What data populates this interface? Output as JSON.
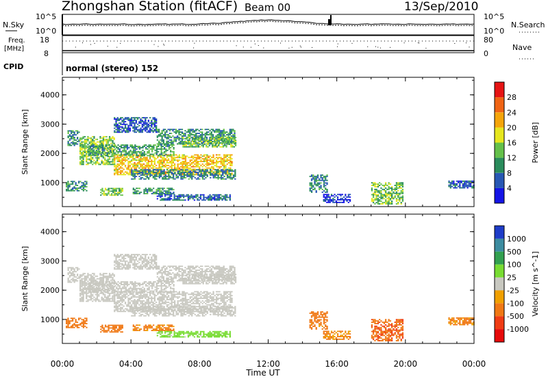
{
  "header": {
    "title": "Zhongshan Station (fitACF)",
    "beam": "Beam 00",
    "date": "13/Sep/2010"
  },
  "status_panels": {
    "nsky": {
      "label": "N.Sky",
      "ticks": [
        "10^5",
        "10^0"
      ]
    },
    "nsearch": {
      "label": "N.Search",
      "ticks": [
        "10^5",
        "10^0"
      ]
    },
    "freq": {
      "label_line1": "Freq.",
      "label_line2": "[MHz]",
      "ticks": [
        "18",
        "8"
      ]
    },
    "nave": {
      "label": "Nave",
      "ticks": [
        "80",
        "0"
      ]
    },
    "cpid": {
      "label": "CPID",
      "text": "normal (stereo) 152"
    }
  },
  "colors": {
    "power_scale": [
      "#1414e6",
      "#2858b4",
      "#2a8c5c",
      "#64c04a",
      "#e6e61e",
      "#f5a50a",
      "#f06414",
      "#e61414"
    ],
    "velocity_scale": [
      "#1e3cc8",
      "#3c8ca0",
      "#32a050",
      "#78dc32",
      "#c8c8c0",
      "#f0a000",
      "#f07814",
      "#f03c14",
      "#e60a0a"
    ],
    "velocity_bg": "#c8c8c0"
  },
  "chart_data": [
    {
      "type": "heatmap",
      "title": "",
      "xlabel": "Time UT",
      "ylabel": "Slant Range [km]",
      "x_tick_labels": [
        "00:00",
        "04:00",
        "08:00",
        "12:00",
        "16:00",
        "20:00",
        "00:00"
      ],
      "xlim": [
        0,
        24
      ],
      "ylim": [
        180,
        4600
      ],
      "y_tick_labels": [
        "1000",
        "2000",
        "3000",
        "4000"
      ],
      "colorbar": {
        "label": "Power [dB]",
        "ticks": [
          "28",
          "24",
          "20",
          "16",
          "12",
          "8",
          "4"
        ],
        "range": [
          0,
          32
        ]
      },
      "regions": [
        {
          "t": [
            0.3,
            1.0
          ],
          "r": [
            2250,
            2750
          ],
          "v": 9
        },
        {
          "t": [
            1.0,
            3.0
          ],
          "r": [
            1600,
            2550
          ],
          "v": 15
        },
        {
          "t": [
            3.0,
            9.9
          ],
          "r": [
            1250,
            1950
          ],
          "v": 20
        },
        {
          "t": [
            1.5,
            6.5
          ],
          "r": [
            1900,
            2300
          ],
          "v": 11
        },
        {
          "t": [
            4.0,
            10.1
          ],
          "r": [
            1100,
            1450
          ],
          "v": 9
        },
        {
          "t": [
            3.0,
            5.5
          ],
          "r": [
            2700,
            3200
          ],
          "v": 6
        },
        {
          "t": [
            5.5,
            10.0
          ],
          "r": [
            2300,
            2800
          ],
          "v": 10
        },
        {
          "t": [
            7.0,
            10.1
          ],
          "r": [
            2200,
            2550
          ],
          "v": 14
        },
        {
          "t": [
            0.2,
            1.4
          ],
          "r": [
            700,
            1050
          ],
          "v": 10
        },
        {
          "t": [
            2.2,
            3.5
          ],
          "r": [
            550,
            800
          ],
          "v": 14
        },
        {
          "t": [
            4.1,
            6.5
          ],
          "r": [
            600,
            800
          ],
          "v": 10
        },
        {
          "t": [
            5.5,
            9.8
          ],
          "r": [
            380,
            600
          ],
          "v": 7
        },
        {
          "t": [
            14.4,
            15.4
          ],
          "r": [
            650,
            1250
          ],
          "v": 9
        },
        {
          "t": [
            15.2,
            16.8
          ],
          "r": [
            300,
            600
          ],
          "v": 4
        },
        {
          "t": [
            18.0,
            19.8
          ],
          "r": [
            250,
            1000
          ],
          "v": 14
        },
        {
          "t": [
            22.5,
            24.0
          ],
          "r": [
            800,
            1050
          ],
          "v": 6
        }
      ]
    },
    {
      "type": "heatmap",
      "title": "",
      "xlabel": "Time UT",
      "ylabel": "Slant Range [km]",
      "x_tick_labels": [
        "00:00",
        "04:00",
        "08:00",
        "12:00",
        "16:00",
        "20:00",
        "00:00"
      ],
      "xlim": [
        0,
        24
      ],
      "ylim": [
        180,
        4600
      ],
      "y_tick_labels": [
        "1000",
        "2000",
        "3000",
        "4000"
      ],
      "colorbar": {
        "label": "Velocity [m s^-1]",
        "ticks": [
          "1000",
          "500",
          "100",
          "25",
          "-25",
          "-100",
          "-500",
          "-1000"
        ],
        "range": [
          -1200,
          1200
        ]
      },
      "regions": [
        {
          "t": [
            0.3,
            1.0
          ],
          "r": [
            2250,
            2750
          ],
          "v": 0
        },
        {
          "t": [
            1.0,
            3.0
          ],
          "r": [
            1600,
            2550
          ],
          "v": 5
        },
        {
          "t": [
            3.0,
            9.9
          ],
          "r": [
            1250,
            1950
          ],
          "v": 0
        },
        {
          "t": [
            1.5,
            6.5
          ],
          "r": [
            1900,
            2300
          ],
          "v": -5
        },
        {
          "t": [
            4.0,
            10.1
          ],
          "r": [
            1100,
            1450
          ],
          "v": 0
        },
        {
          "t": [
            3.0,
            5.5
          ],
          "r": [
            2700,
            3200
          ],
          "v": 0
        },
        {
          "t": [
            5.5,
            10.0
          ],
          "r": [
            2300,
            2800
          ],
          "v": 5
        },
        {
          "t": [
            7.0,
            10.1
          ],
          "r": [
            2200,
            2550
          ],
          "v": 0
        },
        {
          "t": [
            0.2,
            1.4
          ],
          "r": [
            700,
            1050
          ],
          "v": -300
        },
        {
          "t": [
            2.2,
            3.5
          ],
          "r": [
            550,
            800
          ],
          "v": -300
        },
        {
          "t": [
            4.1,
            6.5
          ],
          "r": [
            600,
            800
          ],
          "v": -150
        },
        {
          "t": [
            5.5,
            9.8
          ],
          "r": [
            380,
            600
          ],
          "v": 60
        },
        {
          "t": [
            14.4,
            15.4
          ],
          "r": [
            650,
            1250
          ],
          "v": -200
        },
        {
          "t": [
            15.2,
            16.8
          ],
          "r": [
            300,
            600
          ],
          "v": -100
        },
        {
          "t": [
            18.0,
            19.8
          ],
          "r": [
            250,
            1000
          ],
          "v": -400
        },
        {
          "t": [
            22.5,
            24.0
          ],
          "r": [
            800,
            1050
          ],
          "v": -150
        }
      ]
    }
  ]
}
